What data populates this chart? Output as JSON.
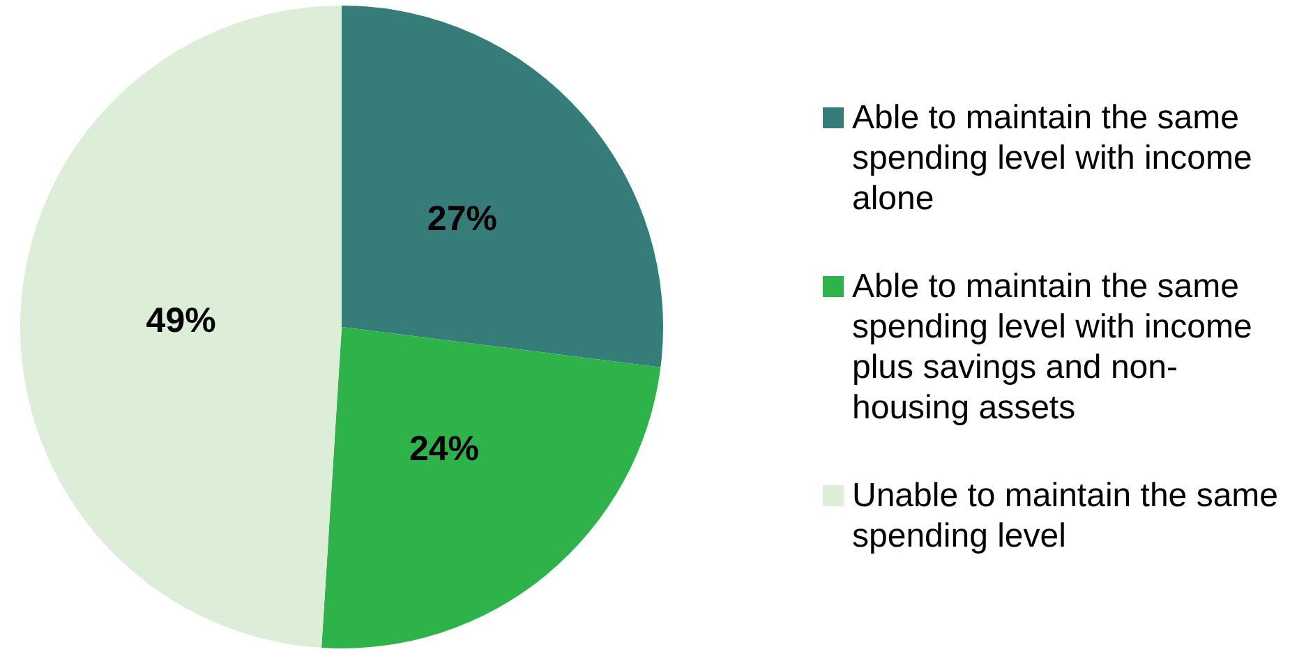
{
  "chart_data": {
    "type": "pie",
    "categories": [
      "Able to maintain the same spending level with income alone",
      "Able to maintain the same spending level with income plus savings and non-housing assets",
      "Unable to maintain the same spending level"
    ],
    "values": [
      27,
      24,
      49
    ],
    "value_labels": [
      "27%",
      "24%",
      "49%"
    ],
    "colors": [
      "#367d7a",
      "#2db34a",
      "#dcedd8"
    ],
    "legend": "right"
  }
}
